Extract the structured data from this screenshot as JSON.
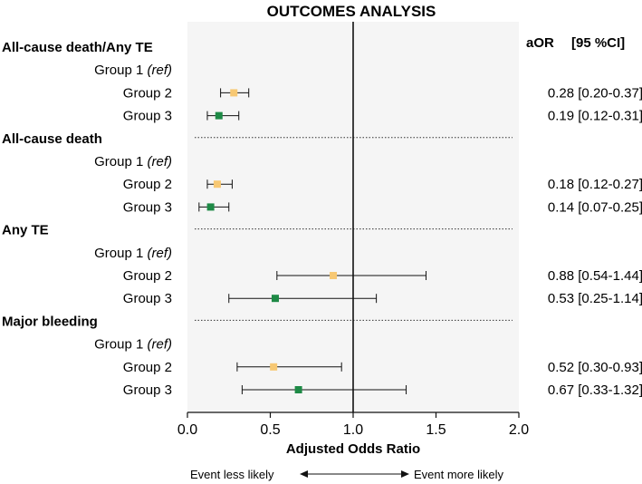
{
  "chart_data": {
    "type": "forest",
    "title": "OUTCOMES ANALYSIS",
    "header": {
      "estimate": "aOR",
      "ci": "[95 %CI]"
    },
    "xlabel": "Adjusted Odds Ratio",
    "xlim": [
      0.0,
      2.0
    ],
    "xticks": [
      "0.0",
      "0.5",
      "1.0",
      "1.5",
      "2.0"
    ],
    "reference_line": 1.0,
    "background": "#f5f5f5",
    "colors": {
      "group2": "#f7c873",
      "group3": "#1e8a46"
    },
    "direction": {
      "left": "Event less likely",
      "right": "Event more likely"
    },
    "sections": [
      {
        "name": "All-cause death/Any TE",
        "rows": [
          {
            "label": "Group 1",
            "ref": "(ref)"
          },
          {
            "label": "Group 2",
            "group": "group2",
            "or": 0.28,
            "lo": 0.2,
            "hi": 0.37,
            "text": "0.28 [0.20-0.37]"
          },
          {
            "label": "Group 3",
            "group": "group3",
            "or": 0.19,
            "lo": 0.12,
            "hi": 0.31,
            "text": "0.19 [0.12-0.31]"
          }
        ]
      },
      {
        "name": "All-cause death",
        "rows": [
          {
            "label": "Group 1",
            "ref": "(ref)"
          },
          {
            "label": "Group 2",
            "group": "group2",
            "or": 0.18,
            "lo": 0.12,
            "hi": 0.27,
            "text": "0.18 [0.12-0.27]"
          },
          {
            "label": "Group 3",
            "group": "group3",
            "or": 0.14,
            "lo": 0.07,
            "hi": 0.25,
            "text": "0.14 [0.07-0.25]"
          }
        ]
      },
      {
        "name": "Any TE",
        "rows": [
          {
            "label": "Group 1",
            "ref": "(ref)"
          },
          {
            "label": "Group 2",
            "group": "group2",
            "or": 0.88,
            "lo": 0.54,
            "hi": 1.44,
            "text": "0.88 [0.54-1.44]"
          },
          {
            "label": "Group 3",
            "group": "group3",
            "or": 0.53,
            "lo": 0.25,
            "hi": 1.14,
            "text": "0.53 [0.25-1.14]"
          }
        ]
      },
      {
        "name": "Major bleeding",
        "rows": [
          {
            "label": "Group 1",
            "ref": "(ref)"
          },
          {
            "label": "Group 2",
            "group": "group2",
            "or": 0.52,
            "lo": 0.3,
            "hi": 0.93,
            "text": "0.52 [0.30-0.93]"
          },
          {
            "label": "Group 3",
            "group": "group3",
            "or": 0.67,
            "lo": 0.33,
            "hi": 1.32,
            "text": "0.67 [0.33-1.32]"
          }
        ]
      }
    ]
  }
}
